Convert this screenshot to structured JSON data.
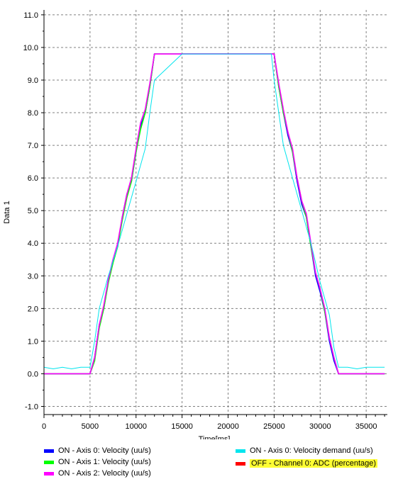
{
  "chart_data": {
    "type": "line",
    "title": "",
    "xlabel": "Time[ms]",
    "ylabel": "Data 1",
    "xlim": [
      0,
      37300
    ],
    "ylim": [
      -1.25,
      11.15
    ],
    "grid": true,
    "x_ticks": [
      0,
      5000,
      10000,
      15000,
      20000,
      25000,
      30000,
      35000
    ],
    "x_tick_labels": [
      "0",
      "5000",
      "10000",
      "15000",
      "20000",
      "25000",
      "30000",
      "35000"
    ],
    "y_ticks": [
      -1.0,
      0.0,
      1.0,
      2.0,
      3.0,
      4.0,
      5.0,
      6.0,
      7.0,
      8.0,
      9.0,
      10.0,
      11.0
    ],
    "y_tick_labels": [
      "-1.0",
      "0.0",
      "1.0",
      "2.0",
      "3.0",
      "4.0",
      "5.0",
      "6.0",
      "7.0",
      "8.0",
      "9.0",
      "10.0",
      "11.0"
    ],
    "series": [
      {
        "name": "ON  - Axis 0: Velocity (uu/s)",
        "color": "#0000ff",
        "x": [
          0,
          5000,
          5500,
          6000,
          6500,
          7000,
          7500,
          8000,
          8500,
          9000,
          9500,
          10000,
          10500,
          11000,
          11500,
          12000,
          25000,
          25500,
          26000,
          26500,
          27000,
          27500,
          28000,
          28500,
          29000,
          29500,
          30000,
          30500,
          31000,
          31500,
          32000,
          37000
        ],
        "y": [
          0,
          0,
          0.5,
          1.5,
          2.0,
          2.9,
          3.5,
          3.9,
          4.8,
          5.5,
          5.9,
          6.8,
          7.6,
          8.0,
          8.8,
          9.8,
          9.8,
          8.8,
          8.0,
          7.3,
          6.8,
          5.9,
          5.2,
          4.8,
          3.9,
          3.0,
          2.5,
          1.9,
          1.0,
          0.4,
          0,
          0
        ]
      },
      {
        "name": "ON  - Axis 1: Velocity (uu/s)",
        "color": "#00ff00",
        "x": [
          0,
          5000,
          5500,
          6000,
          6500,
          7000,
          7500,
          8000,
          8500,
          9000,
          9500,
          10000,
          10500,
          11000,
          11500,
          12000,
          25000,
          25500,
          26000,
          26500,
          27000,
          27500,
          28000,
          28500,
          29000,
          29500,
          30000,
          30500,
          31000,
          31500,
          32000,
          37000
        ],
        "y": [
          0,
          0,
          0.4,
          1.4,
          2.0,
          2.8,
          3.4,
          3.9,
          4.7,
          5.4,
          5.9,
          6.8,
          7.5,
          8.0,
          8.8,
          9.8,
          9.8,
          8.8,
          8.0,
          7.4,
          6.8,
          6.0,
          5.3,
          4.8,
          3.9,
          3.1,
          2.6,
          1.9,
          1.1,
          0.5,
          0,
          0
        ]
      },
      {
        "name": "ON  - Axis 2: Velocity (uu/s)",
        "color": "#ff00ff",
        "x": [
          0,
          5000,
          5500,
          6000,
          6500,
          7000,
          7500,
          8000,
          8500,
          9000,
          9500,
          10000,
          10500,
          11000,
          11500,
          12000,
          25000,
          25500,
          26000,
          26500,
          27000,
          27500,
          28000,
          28500,
          29000,
          29500,
          30000,
          30500,
          31000,
          31500,
          32000,
          37000
        ],
        "y": [
          0,
          0,
          0.5,
          1.5,
          2.1,
          2.9,
          3.5,
          4.0,
          4.8,
          5.5,
          6.0,
          6.9,
          7.7,
          8.1,
          8.9,
          9.8,
          9.8,
          8.9,
          8.1,
          7.4,
          6.9,
          6.0,
          5.3,
          4.9,
          4.0,
          3.1,
          2.6,
          2.0,
          1.1,
          0.5,
          0,
          0
        ]
      },
      {
        "name": "ON  - Axis 0: Velocity demand (uu/s)",
        "color": "#00e5ee",
        "x": [
          0,
          1000,
          2000,
          3000,
          4000,
          5000,
          5500,
          6000,
          7000,
          8000,
          9000,
          10000,
          11000,
          11500,
          12000,
          15000,
          20000,
          24700,
          25000,
          25500,
          26000,
          27000,
          28000,
          29000,
          30000,
          31000,
          31500,
          32000,
          33000,
          34000,
          35000,
          36000,
          37000
        ],
        "y": [
          0.2,
          0.15,
          0.2,
          0.15,
          0.2,
          0.2,
          1.0,
          2.0,
          3.0,
          3.9,
          4.9,
          5.9,
          6.9,
          8.0,
          9.0,
          9.8,
          9.8,
          9.8,
          9.0,
          8.0,
          7.0,
          6.0,
          5.0,
          4.0,
          2.8,
          1.8,
          0.8,
          0.2,
          0.2,
          0.15,
          0.2,
          0.2,
          0.2
        ]
      },
      {
        "name": "OFF - Channel 0: ADC (percentage)",
        "color": "#ff0000",
        "x": [],
        "y": []
      }
    ]
  },
  "legend": [
    {
      "label": "ON  - Axis 0: Velocity (uu/s)",
      "color": "#0000ff",
      "highlight": false
    },
    {
      "label": "ON  - Axis 1: Velocity (uu/s)",
      "color": "#00ff00",
      "highlight": false
    },
    {
      "label": "ON  - Axis 2: Velocity (uu/s)",
      "color": "#ff00ff",
      "highlight": false
    },
    {
      "label": "ON  - Axis 0: Velocity demand (uu/s)",
      "color": "#00e5ee",
      "highlight": false
    },
    {
      "label": "OFF - Channel 0: ADC (percentage)",
      "color": "#ff0000",
      "highlight": true
    }
  ]
}
